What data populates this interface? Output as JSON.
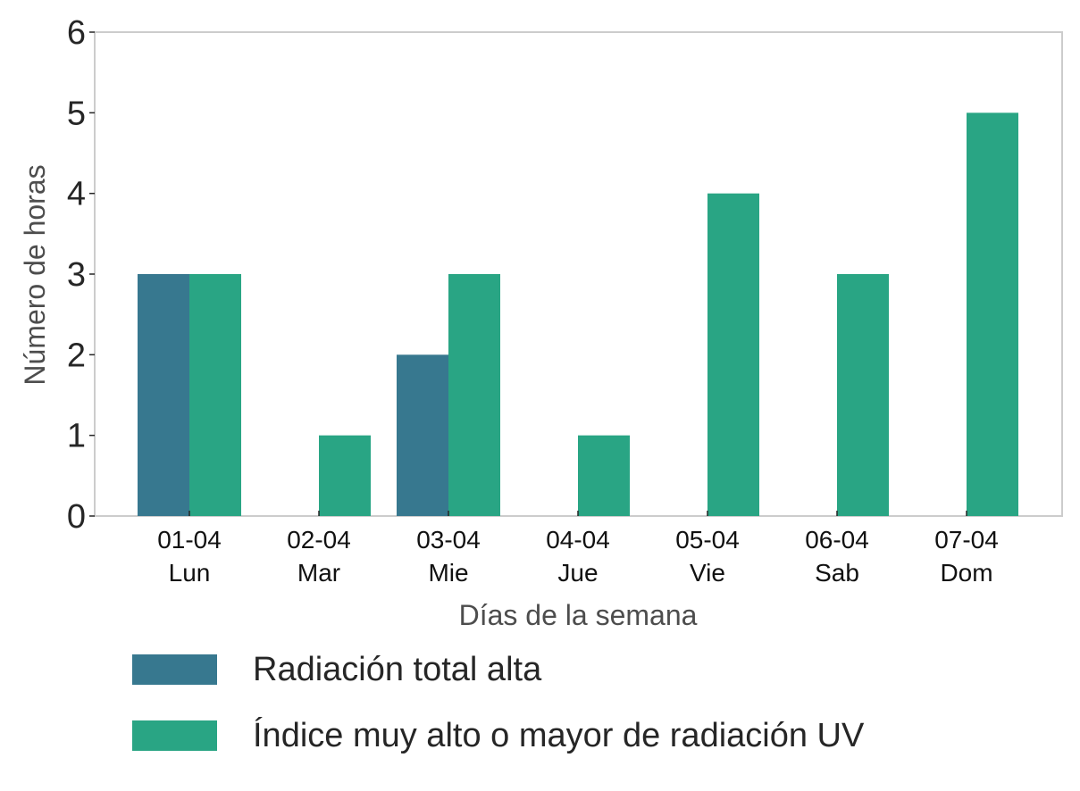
{
  "chart_data": {
    "type": "bar",
    "title": "",
    "xlabel": "Días de la semana",
    "ylabel": "Número de horas",
    "ylim": [
      0,
      6
    ],
    "yticks": [
      0,
      1,
      2,
      3,
      4,
      5,
      6
    ],
    "categories": [
      {
        "date": "01-04",
        "day": "Lun"
      },
      {
        "date": "02-04",
        "day": "Mar"
      },
      {
        "date": "03-04",
        "day": "Mie"
      },
      {
        "date": "04-04",
        "day": "Jue"
      },
      {
        "date": "05-04",
        "day": "Vie"
      },
      {
        "date": "06-04",
        "day": "Sab"
      },
      {
        "date": "07-04",
        "day": "Dom"
      }
    ],
    "series": [
      {
        "name": "Radiación total alta",
        "color": "#37788f",
        "values": [
          3,
          0,
          2,
          0,
          0,
          0,
          0
        ]
      },
      {
        "name": "Índice muy alto o mayor de radiación UV",
        "color": "#29a584",
        "values": [
          3,
          1,
          3,
          1,
          4,
          3,
          5
        ]
      }
    ],
    "grid": false,
    "legend_position": "bottom"
  }
}
